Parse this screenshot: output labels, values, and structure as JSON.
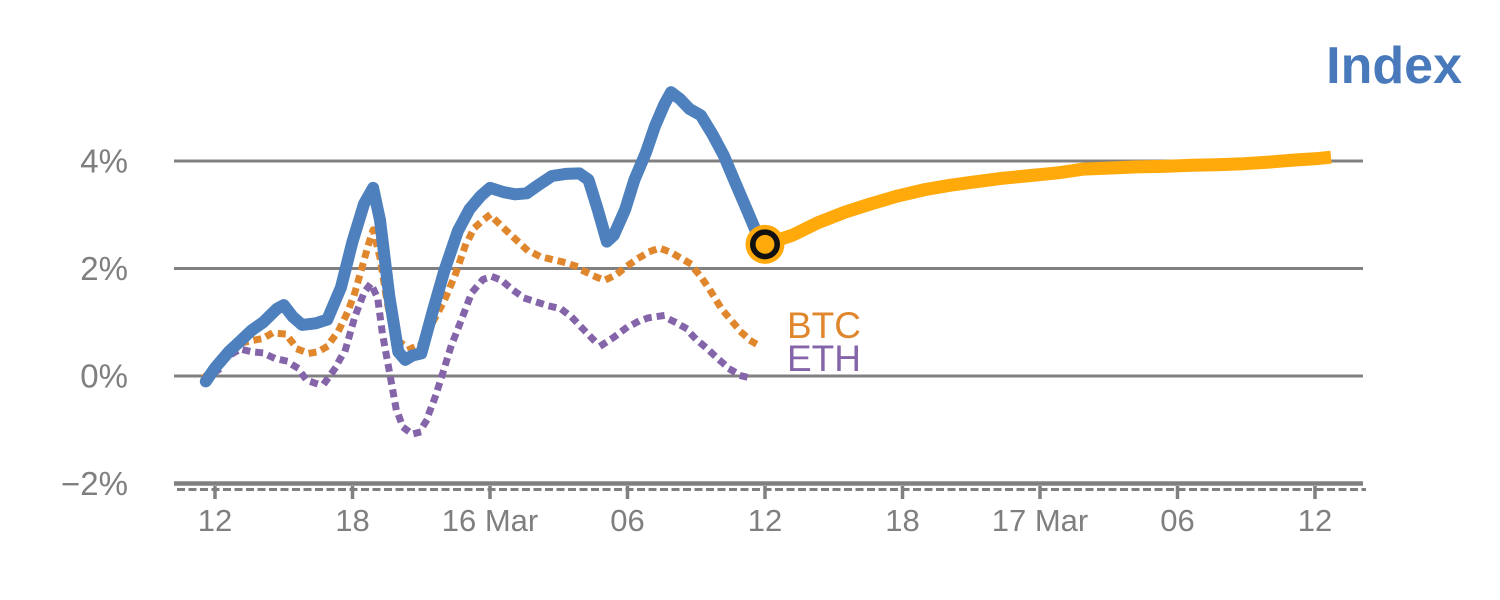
{
  "chart_data": {
    "type": "line",
    "title": "Index",
    "title_color": "#4879ba",
    "x_axis": {
      "unit": "time, 6-hour ticks (Mar 15 12:00 → Mar 17 12:00)",
      "tick_labels": [
        "12",
        "18",
        "16 Mar",
        "06",
        "12",
        "18",
        "17 Mar",
        "06",
        "12"
      ],
      "tick_hours": [
        0,
        6,
        12,
        18,
        24,
        30,
        36,
        42,
        48
      ],
      "minor_ticks": "dashed strip along axis"
    },
    "y_axis": {
      "unit": "%",
      "tick_labels": [
        "4%",
        "2%",
        "0%",
        "−2%"
      ],
      "tick_values": [
        4,
        2,
        0,
        -2
      ],
      "range": [
        -2.4,
        5.7
      ],
      "grid": "horizontal gridlines on"
    },
    "axis_color": "#808080",
    "label_color": "#7f7f7f",
    "series": [
      {
        "name": "Index",
        "color": "#4d80bd",
        "style": "solid",
        "line_width": 12,
        "points": [
          [
            -0.4,
            -0.1
          ],
          [
            0,
            0.15
          ],
          [
            0.6,
            0.45
          ],
          [
            1.1,
            0.65
          ],
          [
            1.6,
            0.85
          ],
          [
            2.1,
            1.0
          ],
          [
            2.7,
            1.25
          ],
          [
            3.0,
            1.32
          ],
          [
            3.4,
            1.1
          ],
          [
            3.8,
            0.95
          ],
          [
            4.4,
            0.98
          ],
          [
            4.9,
            1.05
          ],
          [
            5.5,
            1.65
          ],
          [
            6.0,
            2.5
          ],
          [
            6.5,
            3.2
          ],
          [
            6.9,
            3.5
          ],
          [
            7.2,
            2.9
          ],
          [
            7.6,
            1.5
          ],
          [
            8.0,
            0.45
          ],
          [
            8.3,
            0.3
          ],
          [
            8.6,
            0.38
          ],
          [
            9.0,
            0.42
          ],
          [
            9.5,
            1.2
          ],
          [
            10.0,
            1.95
          ],
          [
            10.6,
            2.7
          ],
          [
            11.1,
            3.1
          ],
          [
            11.6,
            3.35
          ],
          [
            12.0,
            3.5
          ],
          [
            12.6,
            3.42
          ],
          [
            13.1,
            3.38
          ],
          [
            13.6,
            3.4
          ],
          [
            14.1,
            3.55
          ],
          [
            14.7,
            3.72
          ],
          [
            15.3,
            3.76
          ],
          [
            15.9,
            3.77
          ],
          [
            16.3,
            3.65
          ],
          [
            16.7,
            3.1
          ],
          [
            17.1,
            2.5
          ],
          [
            17.4,
            2.62
          ],
          [
            17.9,
            3.1
          ],
          [
            18.3,
            3.65
          ],
          [
            18.8,
            4.15
          ],
          [
            19.2,
            4.65
          ],
          [
            19.6,
            5.05
          ],
          [
            19.9,
            5.28
          ],
          [
            20.3,
            5.15
          ],
          [
            20.7,
            4.97
          ],
          [
            21.2,
            4.85
          ],
          [
            21.7,
            4.5
          ],
          [
            22.2,
            4.1
          ],
          [
            22.7,
            3.6
          ],
          [
            23.2,
            3.1
          ],
          [
            23.6,
            2.7
          ],
          [
            24.0,
            2.45
          ]
        ]
      },
      {
        "name": "Index forecast",
        "color": "#ffa90a",
        "style": "solid",
        "line_width": 13,
        "points": [
          [
            24.0,
            2.45
          ],
          [
            25.2,
            2.62
          ],
          [
            26.3,
            2.85
          ],
          [
            27.5,
            3.05
          ],
          [
            28.6,
            3.2
          ],
          [
            29.8,
            3.35
          ],
          [
            31.0,
            3.47
          ],
          [
            32.1,
            3.55
          ],
          [
            33.3,
            3.62
          ],
          [
            34.4,
            3.68
          ],
          [
            35.6,
            3.73
          ],
          [
            36.8,
            3.78
          ],
          [
            37.9,
            3.85
          ],
          [
            39.1,
            3.87
          ],
          [
            40.2,
            3.89
          ],
          [
            41.4,
            3.9
          ],
          [
            42.6,
            3.92
          ],
          [
            43.7,
            3.93
          ],
          [
            44.9,
            3.95
          ],
          [
            46.0,
            3.98
          ],
          [
            47.2,
            4.02
          ],
          [
            48.0,
            4.04
          ],
          [
            48.7,
            4.07
          ]
        ]
      },
      {
        "name": "BTC",
        "color": "#e0862c",
        "style": "dotted",
        "line_width": 7,
        "points": [
          [
            -0.4,
            0.0
          ],
          [
            0.1,
            0.18
          ],
          [
            0.6,
            0.4
          ],
          [
            1.0,
            0.6
          ],
          [
            1.5,
            0.65
          ],
          [
            2.1,
            0.7
          ],
          [
            2.5,
            0.8
          ],
          [
            3.1,
            0.78
          ],
          [
            3.6,
            0.5
          ],
          [
            4.1,
            0.42
          ],
          [
            4.5,
            0.45
          ],
          [
            4.9,
            0.55
          ],
          [
            5.4,
            0.85
          ],
          [
            5.8,
            1.2
          ],
          [
            6.1,
            1.55
          ],
          [
            6.4,
            2.0
          ],
          [
            6.7,
            2.45
          ],
          [
            6.9,
            2.72
          ],
          [
            7.2,
            2.2
          ],
          [
            7.5,
            1.4
          ],
          [
            7.8,
            0.75
          ],
          [
            8.1,
            0.62
          ],
          [
            8.5,
            0.5
          ],
          [
            9.0,
            0.6
          ],
          [
            9.5,
            1.0
          ],
          [
            10.0,
            1.4
          ],
          [
            10.5,
            1.9
          ],
          [
            10.9,
            2.4
          ],
          [
            11.3,
            2.75
          ],
          [
            11.7,
            2.9
          ],
          [
            12.0,
            3.0
          ],
          [
            12.6,
            2.75
          ],
          [
            13.1,
            2.55
          ],
          [
            13.6,
            2.35
          ],
          [
            14.2,
            2.22
          ],
          [
            14.7,
            2.17
          ],
          [
            15.2,
            2.12
          ],
          [
            15.7,
            2.05
          ],
          [
            16.1,
            1.95
          ],
          [
            16.6,
            1.85
          ],
          [
            17.0,
            1.78
          ],
          [
            17.5,
            1.88
          ],
          [
            18.0,
            2.05
          ],
          [
            18.5,
            2.2
          ],
          [
            19.0,
            2.32
          ],
          [
            19.4,
            2.38
          ],
          [
            19.9,
            2.3
          ],
          [
            20.3,
            2.2
          ],
          [
            20.7,
            2.1
          ],
          [
            21.2,
            1.85
          ],
          [
            21.6,
            1.6
          ],
          [
            22.1,
            1.25
          ],
          [
            22.6,
            1.0
          ],
          [
            23.0,
            0.8
          ],
          [
            23.4,
            0.65
          ],
          [
            23.8,
            0.55
          ]
        ]
      },
      {
        "name": "ETH",
        "color": "#8565a9",
        "style": "dotted",
        "line_width": 7,
        "points": [
          [
            -0.4,
            -0.05
          ],
          [
            0.1,
            0.1
          ],
          [
            0.5,
            0.35
          ],
          [
            1.1,
            0.5
          ],
          [
            1.6,
            0.45
          ],
          [
            2.1,
            0.43
          ],
          [
            2.6,
            0.33
          ],
          [
            3.1,
            0.28
          ],
          [
            3.6,
            0.15
          ],
          [
            4.0,
            -0.08
          ],
          [
            4.5,
            -0.15
          ],
          [
            4.8,
            -0.12
          ],
          [
            5.2,
            0.12
          ],
          [
            5.7,
            0.5
          ],
          [
            6.1,
            1.1
          ],
          [
            6.5,
            1.55
          ],
          [
            6.8,
            1.72
          ],
          [
            7.1,
            1.45
          ],
          [
            7.3,
            0.8
          ],
          [
            7.6,
            0.1
          ],
          [
            7.9,
            -0.6
          ],
          [
            8.2,
            -0.95
          ],
          [
            8.6,
            -1.08
          ],
          [
            8.9,
            -1.05
          ],
          [
            9.2,
            -0.85
          ],
          [
            9.6,
            -0.4
          ],
          [
            9.9,
            0.0
          ],
          [
            10.3,
            0.55
          ],
          [
            10.8,
            1.1
          ],
          [
            11.2,
            1.55
          ],
          [
            11.7,
            1.8
          ],
          [
            12.1,
            1.85
          ],
          [
            12.5,
            1.78
          ],
          [
            13.0,
            1.6
          ],
          [
            13.5,
            1.45
          ],
          [
            14.0,
            1.38
          ],
          [
            14.6,
            1.3
          ],
          [
            15.1,
            1.25
          ],
          [
            15.6,
            1.08
          ],
          [
            16.0,
            0.9
          ],
          [
            16.5,
            0.68
          ],
          [
            16.9,
            0.58
          ],
          [
            17.4,
            0.72
          ],
          [
            17.9,
            0.88
          ],
          [
            18.4,
            1.0
          ],
          [
            18.9,
            1.08
          ],
          [
            19.5,
            1.12
          ],
          [
            20.0,
            1.02
          ],
          [
            20.5,
            0.9
          ],
          [
            21.0,
            0.68
          ],
          [
            21.5,
            0.5
          ],
          [
            22.0,
            0.3
          ],
          [
            22.5,
            0.12
          ],
          [
            23.0,
            0.0
          ],
          [
            23.3,
            -0.03
          ]
        ]
      }
    ],
    "marker": {
      "name": "forecast start marker",
      "x_hour": 24,
      "value_pct": 2.45,
      "shape": "ringed circle",
      "ring_color": "#111111",
      "fill_color": "#ffa90a"
    },
    "annotations": {
      "btc_label": {
        "text": "BTC",
        "color": "#e0862c"
      },
      "eth_label": {
        "text": "ETH",
        "color": "#8565a9"
      }
    }
  }
}
